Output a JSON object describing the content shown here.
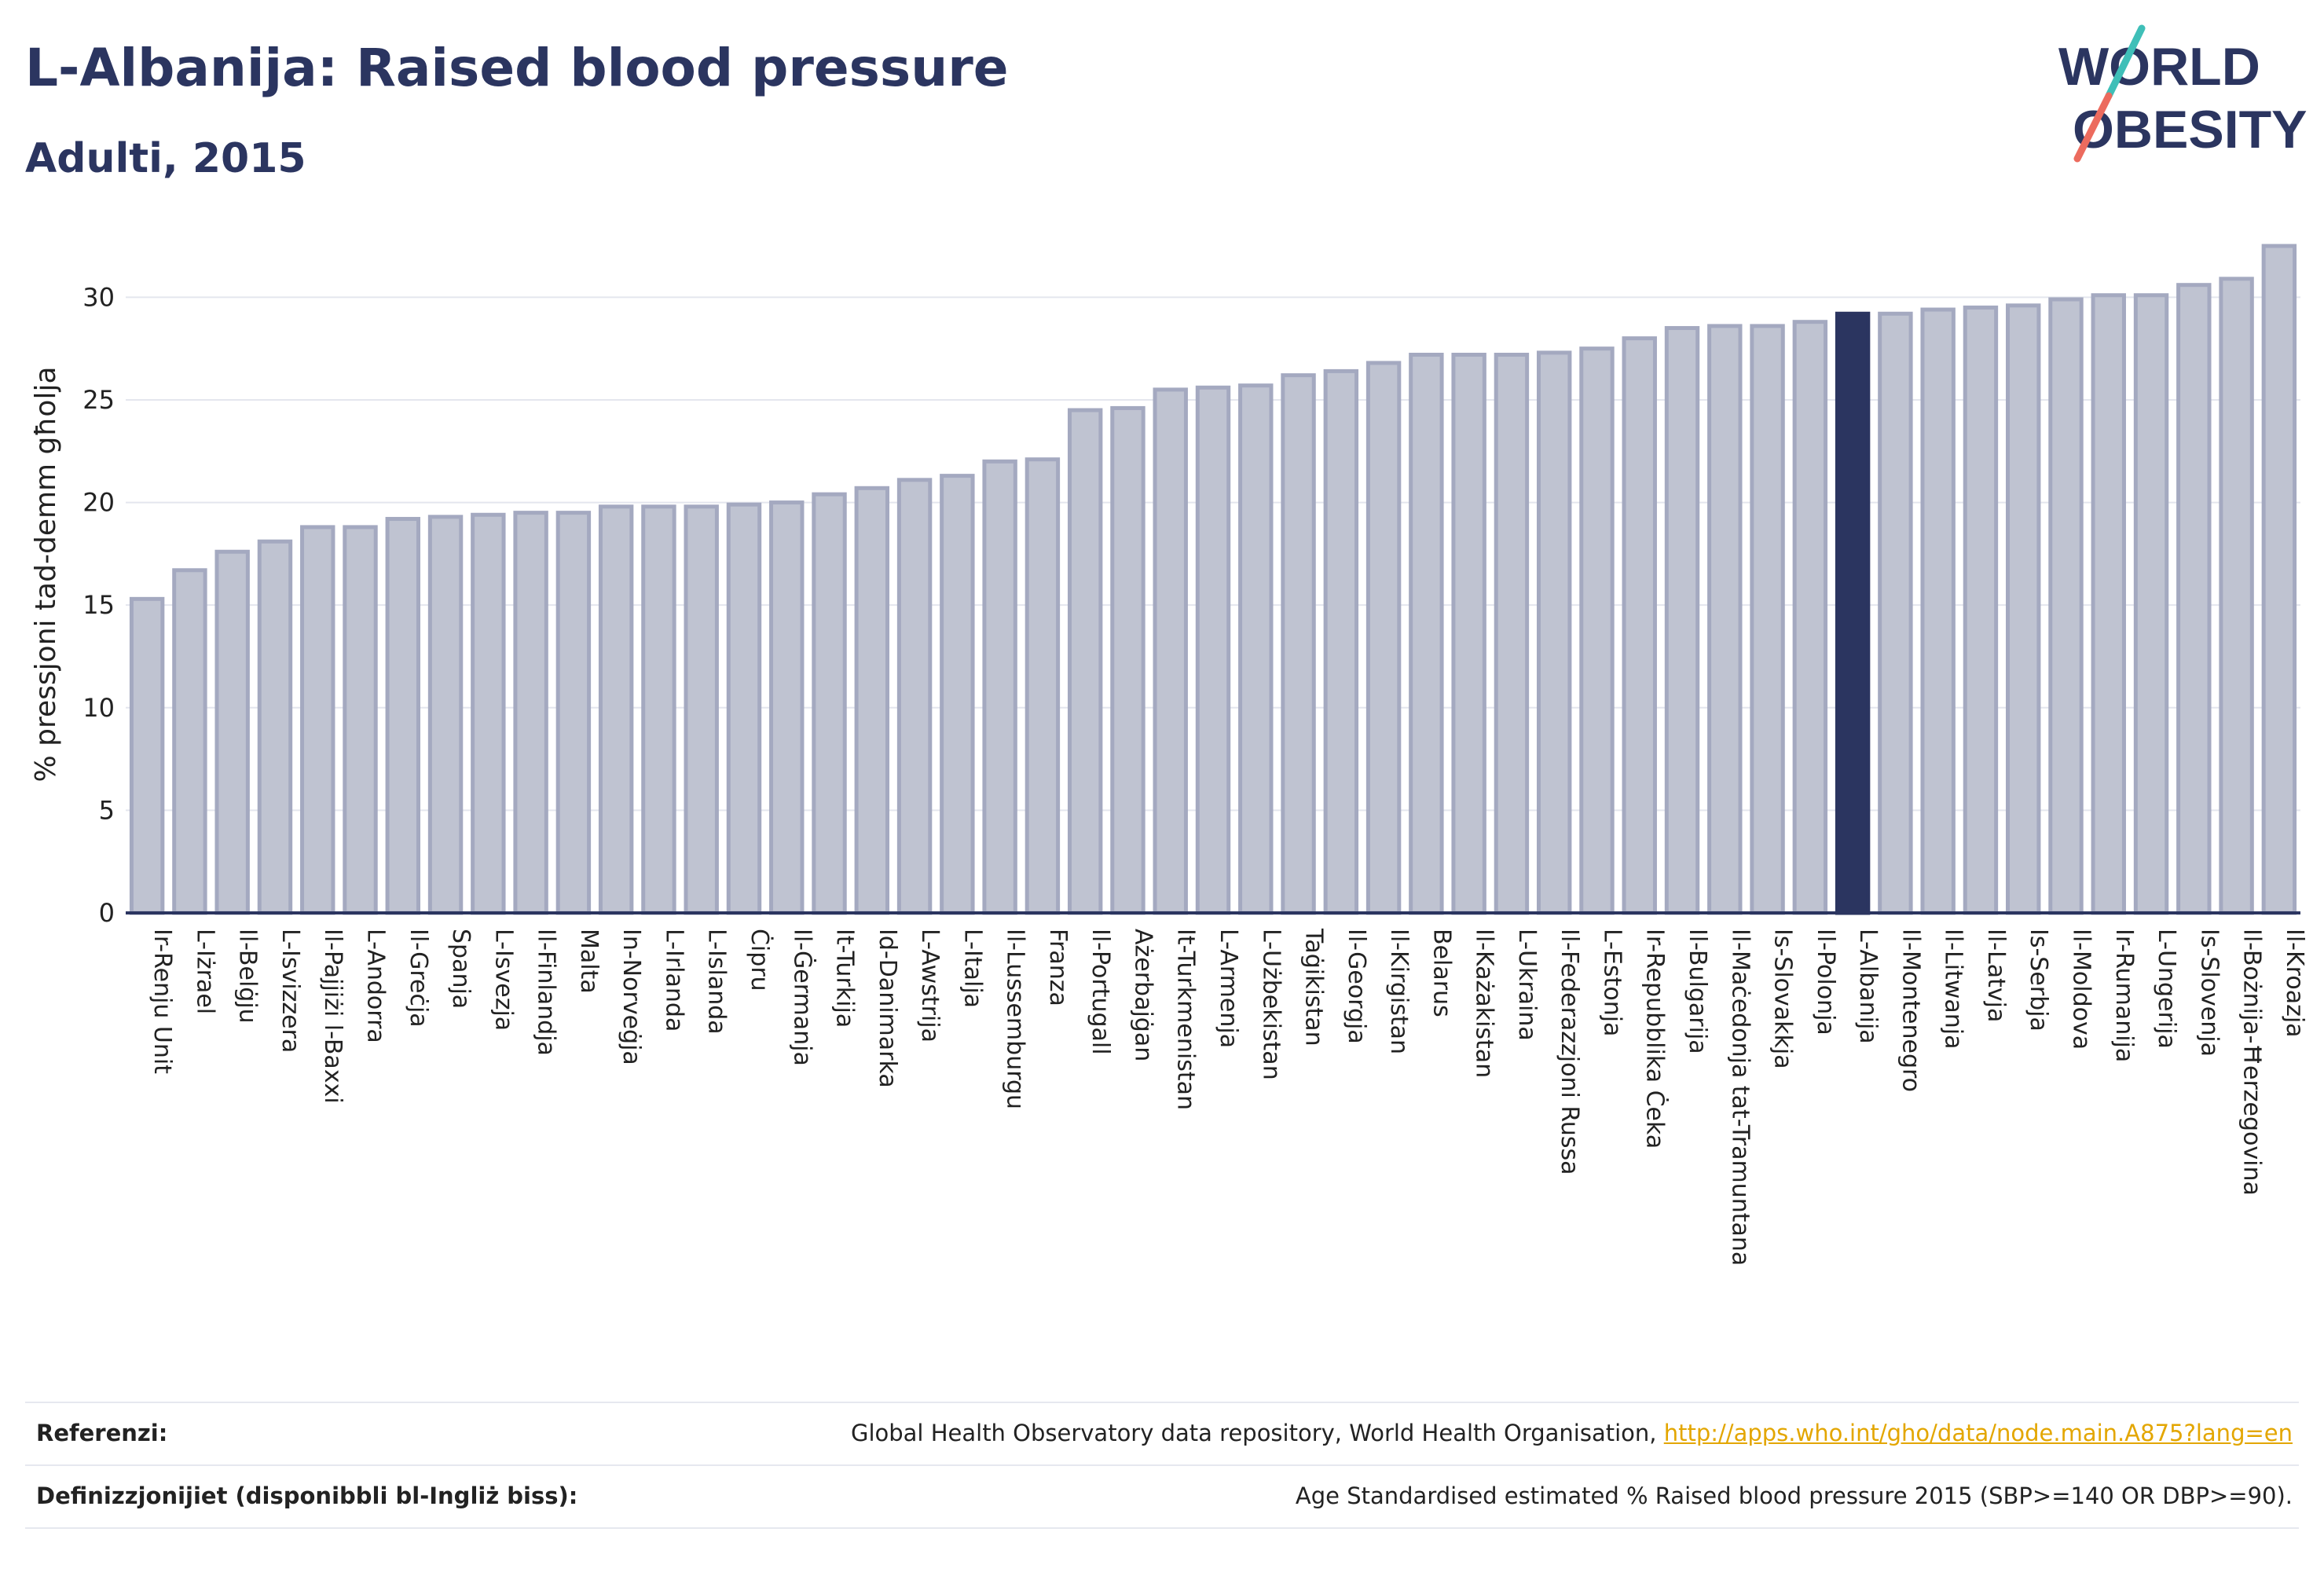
{
  "header": {
    "title": "L-Albanija: Raised blood pressure",
    "subtitle": "Adulti, 2015",
    "logo_line1": "WORLD",
    "logo_line2": "OBESITY"
  },
  "chart_data": {
    "type": "bar",
    "ylabel": "% pressjoni tad-demm għolja",
    "ylim": [
      0,
      33
    ],
    "yticks": [
      0,
      5,
      10,
      15,
      20,
      25,
      30
    ],
    "grid": true,
    "highlight": "L-Albanija",
    "colors": {
      "bar": "#bfc3d1",
      "bar_edge": "#a4a9c0",
      "highlight": "#2b3560",
      "grid": "#e4e6ee",
      "axis": "#2b3560"
    },
    "categories": [
      "Ir-Renju Unit",
      "L-Iżrael",
      "Il-Belġju",
      "L-Isvizzera",
      "Il-Pajjiżi l-Baxxi",
      "L-Andorra",
      "Il-Greċja",
      "Spanja",
      "L-Isvezja",
      "Il-Finlandja",
      "Malta",
      "In-Norveġja",
      "L-Irlanda",
      "L-Islanda",
      "Ċipru",
      "Il-Ġermanja",
      "It-Turkija",
      "Id-Danimarka",
      "L-Awstrija",
      "L-Italja",
      "Il-Lussemburgu",
      "Franza",
      "Il-Portugall",
      "Ażerbajġan",
      "It-Turkmenistan",
      "L-Armenja",
      "L-Użbekistan",
      "Taġikistan",
      "Il-Georgja",
      "Il-Kirgistan",
      "Belarus",
      "Il-Każakistan",
      "L-Ukraina",
      "Il-Federazzjoni Russa",
      "L-Estonja",
      "Ir-Repubblika Ċeka",
      "Il-Bulgarija",
      "Il-Maċedonja tat-Tramuntana",
      "Is-Slovakkja",
      "Il-Polonja",
      "L-Albanija",
      "Il-Montenegro",
      "Il-Litwanja",
      "Il-Latvja",
      "Is-Serbja",
      "Il-Moldova",
      "Ir-Rumanija",
      "L-Ungerija",
      "Is-Slovenja",
      "Il-Bożnija-Ħerzegovina",
      "Il-Kroazja"
    ],
    "values": [
      15.3,
      16.7,
      17.6,
      18.1,
      18.8,
      18.8,
      19.2,
      19.3,
      19.4,
      19.5,
      19.5,
      19.8,
      19.8,
      19.8,
      19.9,
      20.0,
      20.4,
      20.7,
      21.1,
      21.3,
      22.0,
      22.1,
      24.5,
      24.6,
      25.5,
      25.6,
      25.7,
      26.2,
      26.4,
      26.8,
      27.2,
      27.2,
      27.2,
      27.3,
      27.5,
      28.0,
      28.5,
      28.6,
      28.6,
      28.8,
      29.2,
      29.2,
      29.4,
      29.5,
      29.6,
      29.9,
      30.1,
      30.1,
      30.6,
      30.9,
      32.5
    ]
  },
  "footer": {
    "references_label": "Referenzi:",
    "references_text": "Global Health Observatory data repository, World Health Organisation, ",
    "references_link": "http://apps.who.int/gho/data/node.main.A875?lang=en",
    "definitions_label": "Definizzjonijiet (disponibbli bl-Ingliż biss):",
    "definitions_text": "Age Standardised estimated % Raised blood pressure 2015 (SBP>=140 OR DBP>=90)."
  }
}
